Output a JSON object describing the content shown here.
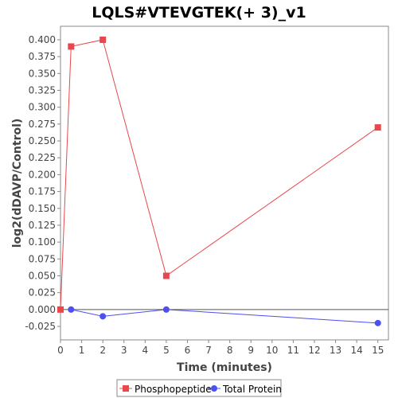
{
  "chart_data": {
    "type": "line",
    "title": "LQLS#VTEVGTEK(+ 3)_v1",
    "xlabel": "Time (minutes)",
    "ylabel": "log2(dDAVP/Control)",
    "xlim": [
      0,
      15.5
    ],
    "ylim": [
      -0.045,
      0.42
    ],
    "x_ticks": [
      0,
      1,
      2,
      3,
      4,
      5,
      6,
      7,
      8,
      9,
      10,
      11,
      12,
      13,
      14,
      15
    ],
    "y_ticks": [
      -0.025,
      0.0,
      0.025,
      0.05,
      0.075,
      0.1,
      0.125,
      0.15,
      0.175,
      0.2,
      0.225,
      0.25,
      0.275,
      0.3,
      0.325,
      0.35,
      0.375,
      0.4
    ],
    "y_tick_labels": [
      "-0.025",
      "0.000",
      "0.025",
      "0.050",
      "0.075",
      "0.100",
      "0.125",
      "0.150",
      "0.175",
      "0.200",
      "0.225",
      "0.250",
      "0.275",
      "0.300",
      "0.325",
      "0.350",
      "0.375",
      "0.400"
    ],
    "legend_position": "bottom",
    "grid": false,
    "series": [
      {
        "name": "Phosphopeptide",
        "color": "#e8474c",
        "marker": "square",
        "x": [
          0,
          0.5,
          2,
          5,
          15
        ],
        "y": [
          0.0,
          0.39,
          0.4,
          0.05,
          0.27
        ]
      },
      {
        "name": "Total Protein",
        "color": "#4d4ff0",
        "marker": "circle",
        "x": [
          0.5,
          2,
          5,
          15
        ],
        "y": [
          0.0,
          -0.01,
          0.0,
          -0.02
        ]
      }
    ]
  }
}
